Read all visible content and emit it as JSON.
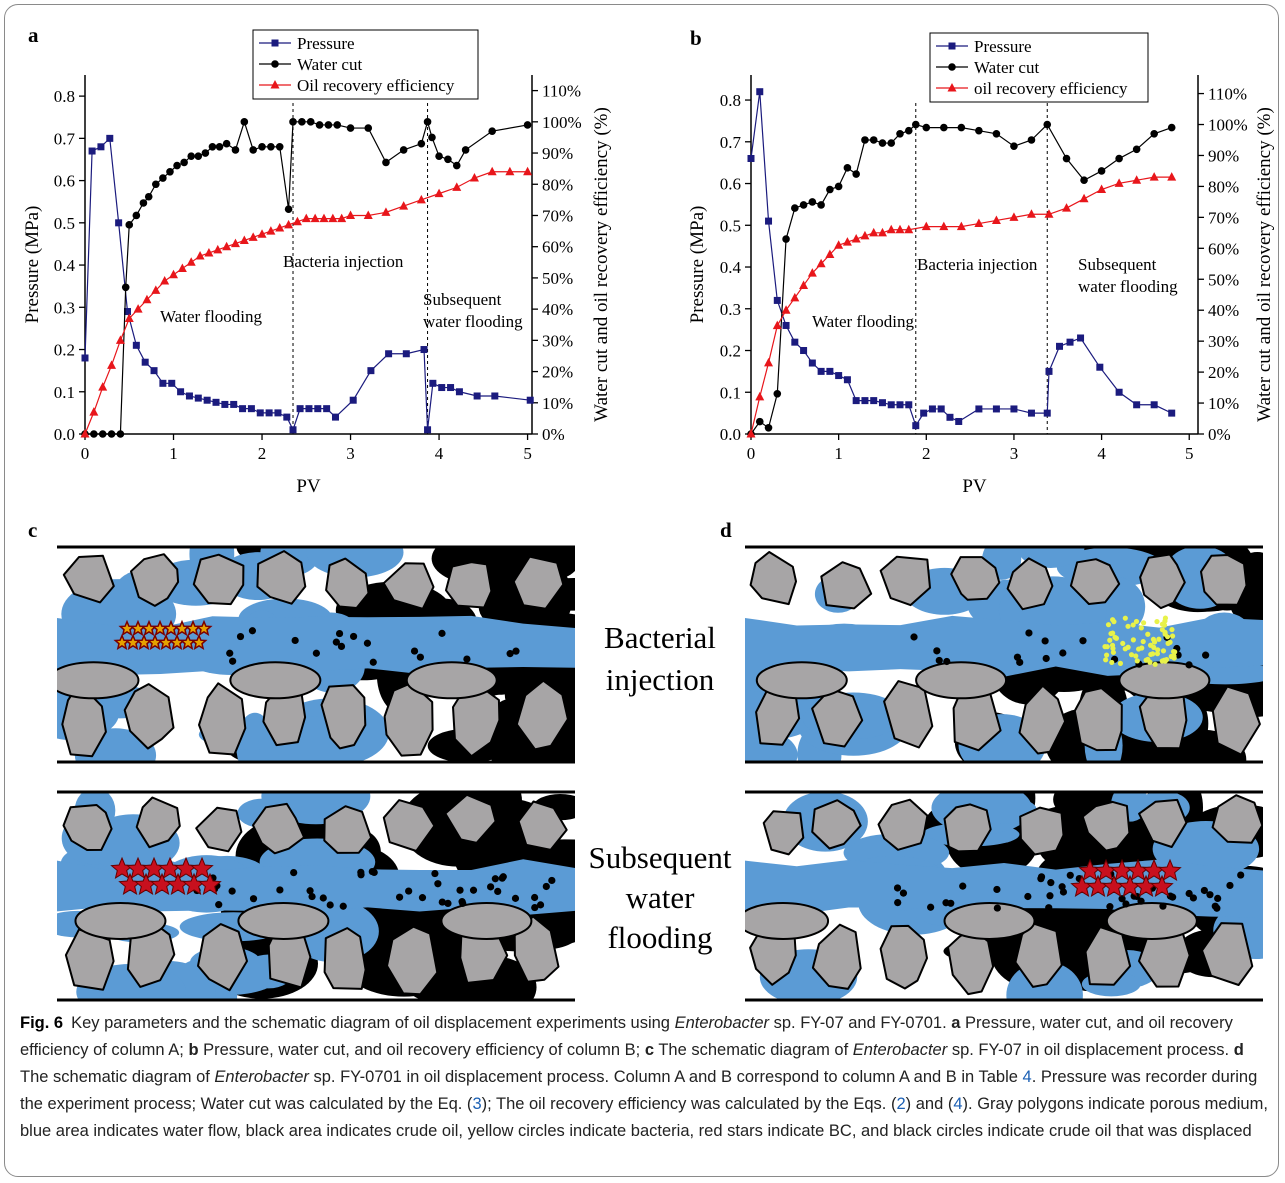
{
  "chart_data": [
    {
      "type": "line",
      "panel": "a",
      "x_label": "PV",
      "y_label": "Pressure (MPa)",
      "y2_label": "Water cut and oil recovery efficiency (%)",
      "xlim": [
        0,
        5.05
      ],
      "xticks": [
        0,
        1,
        2,
        3,
        4,
        5
      ],
      "ylim": [
        0,
        0.85
      ],
      "yticks": [
        {
          "value": 0,
          "label": "0.0"
        },
        0.1,
        0.2,
        0.3,
        0.4,
        0.5,
        0.6,
        0.7,
        0.8
      ],
      "y2lim": [
        0,
        115
      ],
      "y2ticks": [
        {
          "value": 0,
          "label": "0%"
        },
        {
          "value": 10,
          "label": "10%"
        },
        {
          "value": 20,
          "label": "20%"
        },
        {
          "value": 30,
          "label": "30%"
        },
        {
          "value": 40,
          "label": "40%"
        },
        {
          "value": 50,
          "label": "50%"
        },
        {
          "value": 60,
          "label": "60%"
        },
        {
          "value": 70,
          "label": "70%"
        },
        {
          "value": 80,
          "label": "80%"
        },
        {
          "value": 90,
          "label": "90%"
        },
        {
          "value": 100,
          "label": "100%"
        },
        {
          "value": 110,
          "label": "110%"
        }
      ],
      "phase_boundaries": [
        2.35,
        3.87
      ],
      "annotations": [
        [
          "Water flooding"
        ],
        [
          "Bacteria injection"
        ],
        [
          "Subsequent",
          "water flooding"
        ]
      ],
      "series": [
        {
          "name": "Pressure",
          "color": "#1b1b7e",
          "marker": "square",
          "x": [
            0,
            0.08,
            0.18,
            0.28,
            0.38,
            0.48,
            0.58,
            0.68,
            0.78,
            0.88,
            0.98,
            1.08,
            1.18,
            1.28,
            1.38,
            1.48,
            1.58,
            1.68,
            1.78,
            1.88,
            1.98,
            2.08,
            2.18,
            2.28,
            2.35,
            2.43,
            2.53,
            2.63,
            2.73,
            2.83,
            3.03,
            3.23,
            3.43,
            3.63,
            3.83,
            3.87,
            3.93,
            4.03,
            4.13,
            4.23,
            4.43,
            4.63,
            5.03
          ],
          "values": [
            0.18,
            0.67,
            0.68,
            0.7,
            0.5,
            0.29,
            0.21,
            0.17,
            0.15,
            0.12,
            0.12,
            0.1,
            0.09,
            0.085,
            0.08,
            0.075,
            0.07,
            0.07,
            0.06,
            0.06,
            0.05,
            0.05,
            0.05,
            0.04,
            0.01,
            0.06,
            0.06,
            0.06,
            0.06,
            0.04,
            0.08,
            0.15,
            0.19,
            0.19,
            0.2,
            0.01,
            0.12,
            0.11,
            0.11,
            0.1,
            0.09,
            0.09,
            0.08
          ]
        },
        {
          "name": "Water cut",
          "color": "#000000",
          "marker": "circle",
          "axis": "y2",
          "x": [
            0,
            0.1,
            0.2,
            0.3,
            0.4,
            0.46,
            0.5,
            0.58,
            0.66,
            0.72,
            0.8,
            0.88,
            0.96,
            1.04,
            1.12,
            1.2,
            1.28,
            1.36,
            1.44,
            1.52,
            1.6,
            1.7,
            1.8,
            1.9,
            2.0,
            2.1,
            2.2,
            2.3,
            2.35,
            2.45,
            2.55,
            2.65,
            2.75,
            2.85,
            3.0,
            3.2,
            3.4,
            3.6,
            3.8,
            3.87,
            3.92,
            4.0,
            4.1,
            4.2,
            4.3,
            4.6,
            5.0
          ],
          "values": [
            0,
            0,
            0,
            0,
            0,
            47,
            67,
            70,
            74,
            76,
            80,
            82,
            84,
            86,
            87,
            89,
            89,
            90,
            92,
            92,
            93,
            91,
            100,
            91,
            92,
            92,
            92,
            72,
            100,
            100,
            100,
            99,
            99,
            99,
            98,
            98,
            87,
            91,
            93,
            100,
            95,
            89,
            88,
            86,
            91,
            97,
            99
          ]
        },
        {
          "name": "Oil recovery efficiency",
          "color": "#e8161b",
          "marker": "triangle",
          "axis": "y2",
          "x": [
            0,
            0.1,
            0.2,
            0.3,
            0.4,
            0.5,
            0.6,
            0.7,
            0.8,
            0.9,
            1.0,
            1.1,
            1.2,
            1.3,
            1.4,
            1.5,
            1.6,
            1.7,
            1.8,
            1.9,
            2.0,
            2.1,
            2.2,
            2.3,
            2.4,
            2.5,
            2.6,
            2.7,
            2.8,
            2.9,
            3.0,
            3.2,
            3.4,
            3.6,
            3.8,
            4.0,
            4.2,
            4.4,
            4.6,
            4.8,
            5.0
          ],
          "values": [
            0,
            7,
            15,
            22,
            30,
            37,
            40,
            43,
            46,
            49,
            51,
            53,
            55,
            57,
            58,
            59,
            60,
            61,
            62,
            63,
            64,
            65,
            66,
            67,
            68,
            69,
            69,
            69,
            69,
            69,
            70,
            70,
            71,
            73,
            75,
            77,
            79,
            82,
            84,
            84,
            84
          ]
        }
      ]
    },
    {
      "type": "line",
      "panel": "b",
      "x_label": "PV",
      "y_label": "Pressure (MPa)",
      "y2_label": "Water cut and oil recovery efficiency (%)",
      "xlim": [
        0,
        5.1
      ],
      "xticks": [
        0,
        1,
        2,
        3,
        4,
        5
      ],
      "ylim": [
        0,
        0.86
      ],
      "yticks": [
        {
          "value": 0,
          "label": "0.0"
        },
        0.1,
        0.2,
        0.3,
        0.4,
        0.5,
        0.6,
        0.7,
        0.8
      ],
      "y2lim": [
        0,
        116
      ],
      "y2ticks": [
        {
          "value": 0,
          "label": "0%"
        },
        {
          "value": 10,
          "label": "10%"
        },
        {
          "value": 20,
          "label": "20%"
        },
        {
          "value": 30,
          "label": "30%"
        },
        {
          "value": 40,
          "label": "40%"
        },
        {
          "value": 50,
          "label": "50%"
        },
        {
          "value": 60,
          "label": "60%"
        },
        {
          "value": 70,
          "label": "70%"
        },
        {
          "value": 80,
          "label": "80%"
        },
        {
          "value": 90,
          "label": "90%"
        },
        {
          "value": 100,
          "label": "100%"
        },
        {
          "value": 110,
          "label": "110%"
        }
      ],
      "phase_boundaries": [
        1.88,
        3.38
      ],
      "annotations": [
        [
          "Water flooding"
        ],
        [
          "Bacteria injection"
        ],
        [
          "Subsequent",
          "water flooding"
        ]
      ],
      "series": [
        {
          "name": "Pressure",
          "color": "#1b1b7e",
          "marker": "square",
          "x": [
            0,
            0.1,
            0.2,
            0.3,
            0.4,
            0.5,
            0.6,
            0.7,
            0.8,
            0.9,
            1.0,
            1.1,
            1.2,
            1.3,
            1.4,
            1.5,
            1.6,
            1.7,
            1.8,
            1.88,
            1.97,
            2.07,
            2.17,
            2.27,
            2.37,
            2.6,
            2.8,
            3.0,
            3.2,
            3.38,
            3.4,
            3.52,
            3.64,
            3.76,
            3.98,
            4.2,
            4.4,
            4.6,
            4.8
          ],
          "values": [
            0.66,
            0.82,
            0.51,
            0.32,
            0.26,
            0.22,
            0.2,
            0.17,
            0.15,
            0.15,
            0.14,
            0.13,
            0.08,
            0.08,
            0.08,
            0.075,
            0.07,
            0.07,
            0.07,
            0.02,
            0.05,
            0.06,
            0.06,
            0.04,
            0.03,
            0.06,
            0.06,
            0.06,
            0.05,
            0.05,
            0.15,
            0.21,
            0.22,
            0.23,
            0.16,
            0.1,
            0.07,
            0.07,
            0.05
          ]
        },
        {
          "name": "Water cut",
          "color": "#000000",
          "marker": "circle",
          "axis": "y2",
          "x": [
            0,
            0.1,
            0.2,
            0.3,
            0.4,
            0.5,
            0.6,
            0.7,
            0.8,
            0.9,
            1.0,
            1.1,
            1.2,
            1.3,
            1.4,
            1.5,
            1.6,
            1.7,
            1.8,
            1.88,
            2.0,
            2.2,
            2.4,
            2.6,
            2.8,
            3.0,
            3.2,
            3.38,
            3.6,
            3.8,
            4.0,
            4.2,
            4.4,
            4.6,
            4.8
          ],
          "values": [
            0,
            4,
            2,
            13,
            63,
            73,
            74,
            75,
            74,
            79,
            80,
            86,
            84,
            95,
            95,
            94,
            94,
            97,
            98,
            100,
            99,
            99,
            99,
            98,
            97,
            93,
            95,
            100,
            89,
            82,
            85,
            89,
            92,
            97,
            99
          ]
        },
        {
          "name": "oil recovery efficiency",
          "color": "#e8161b",
          "marker": "triangle",
          "axis": "y2",
          "x": [
            0,
            0.1,
            0.2,
            0.3,
            0.4,
            0.5,
            0.6,
            0.7,
            0.8,
            0.9,
            1.0,
            1.1,
            1.2,
            1.3,
            1.4,
            1.5,
            1.6,
            1.7,
            1.8,
            2.0,
            2.2,
            2.4,
            2.6,
            2.8,
            3.0,
            3.2,
            3.4,
            3.6,
            3.8,
            4.0,
            4.2,
            4.4,
            4.6,
            4.8
          ],
          "values": [
            0,
            12,
            23,
            35,
            40,
            44,
            48,
            52,
            55,
            58,
            61,
            62,
            63,
            64,
            65,
            65,
            66,
            66,
            66,
            67,
            67,
            67,
            68,
            69,
            70,
            71,
            71,
            73,
            76,
            79,
            81,
            82,
            83,
            83
          ]
        }
      ]
    }
  ],
  "diagrams": {
    "panels": [
      "c",
      "d"
    ],
    "rows": [
      [
        "Bacterial",
        "injection"
      ],
      [
        "Subsequent",
        "water",
        "flooding"
      ]
    ]
  },
  "caption": {
    "label": "Fig. 6",
    "segments": [
      {
        "text": "Key parameters and the schematic diagram of oil displacement experiments using ",
        "style": "normal"
      },
      {
        "text": "Enterobacter",
        "style": "italic"
      },
      {
        "text": " sp. FY-07 and FY-0701. ",
        "style": "normal"
      },
      {
        "text": "a",
        "style": "bold"
      },
      {
        "text": " Pressure, water cut, and oil recovery efficiency of column A; ",
        "style": "normal"
      },
      {
        "text": "b",
        "style": "bold"
      },
      {
        "text": " Pressure, water cut, and oil recovery efficiency of column B; ",
        "style": "normal"
      },
      {
        "text": "c",
        "style": "bold"
      },
      {
        "text": " The schematic diagram of ",
        "style": "normal"
      },
      {
        "text": "Enterobacter",
        "style": "italic"
      },
      {
        "text": " sp. FY-07 in oil displacement process. ",
        "style": "normal"
      },
      {
        "text": "d",
        "style": "bold"
      },
      {
        "text": " The schematic diagram of ",
        "style": "normal"
      },
      {
        "text": "Enterobacter",
        "style": "italic"
      },
      {
        "text": " sp. FY-0701 in oil displacement process. Column A and B correspond to column A and B in Table ",
        "style": "normal"
      },
      {
        "text": "4",
        "style": "link"
      },
      {
        "text": ". Pressure was recorder during the experiment process; Water cut was calculated by the Eq. (",
        "style": "normal"
      },
      {
        "text": "3",
        "style": "link"
      },
      {
        "text": "); The oil recovery efficiency was calculated by the Eqs. (",
        "style": "normal"
      },
      {
        "text": "2",
        "style": "link"
      },
      {
        "text": ") and (",
        "style": "normal"
      },
      {
        "text": "4",
        "style": "link"
      },
      {
        "text": "). Gray polygons indicate porous medium, blue area indicates water flow, black area indicates crude oil, yellow circles indicate bacteria, red stars indicate BC, and black circles indicate crude oil that was displaced",
        "style": "normal"
      }
    ]
  }
}
